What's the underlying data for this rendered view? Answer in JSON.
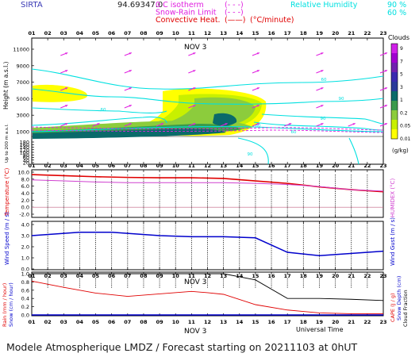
{
  "header": {
    "site": "SIRTA",
    "coords": "94.69347.0",
    "legend_left": [
      {
        "label": "0 C isotherm",
        "sym": "(- - -)",
        "color": "#e020e0"
      },
      {
        "label": "Snow-Rain Limit",
        "sym": "(- - -)",
        "color": "#e020e0"
      },
      {
        "label": "Convective Heat.",
        "sym": "(——)",
        "color": "#e00000",
        "unit": "(°C/minute)"
      }
    ],
    "legend_right": {
      "label": "Relative Humidity",
      "v1": "90 %",
      "v2": "60 %",
      "color": "#00e0e0"
    }
  },
  "hours": [
    "01",
    "02",
    "03",
    "04",
    "05",
    "06",
    "07",
    "08",
    "09",
    "10",
    "11",
    "12",
    "13",
    "14",
    "15",
    "16",
    "17",
    "18",
    "19",
    "20",
    "21",
    "22",
    "23"
  ],
  "date_label": "NOV  3",
  "x_axis_title": "Universal Time",
  "footer": "Modele Atmospherique LMDZ / Forecast starting on 20211103 at 0hUT",
  "colors": {
    "cloud_scale": [
      "#ffff00",
      "#c8f000",
      "#8ccc3c",
      "#3a9a4c",
      "#0a6a6a",
      "#2a3a9a",
      "#3a2ab0",
      "#7020b0",
      "#a000d0",
      "#d020e8"
    ],
    "rh_line": "#00e0e0",
    "wind_arrow": "#e020e0",
    "temperature": "#e00000",
    "humidex": "#d040d0",
    "wind_speed": "#0000cc",
    "precip_rain": "#e00000",
    "precip_snow": "#0000cc",
    "cloud_fraction": "#000000"
  },
  "chart_data": [
    {
      "type": "heatmap",
      "title": "Clouds",
      "ylabel": "Height (m a.s.l.)",
      "ylabel2": "Up to 200 m a.s.l.",
      "unit": "(g/kg)",
      "y_ticks": [
        11000,
        9000,
        7000,
        5000,
        3000,
        1000,
        180,
        160,
        140,
        120,
        100,
        80,
        60,
        40,
        20
      ],
      "colorbar_labels": [
        "9",
        "7",
        "5",
        "3",
        "1",
        "0.2",
        "0.05",
        "0.01"
      ],
      "rh_labels": [
        "60",
        "90",
        "60",
        "90",
        "60",
        "60",
        "90"
      ]
    },
    {
      "type": "line",
      "ylabel": "Temperature (°C)",
      "ylabel2": "HUMIDEX (°C)",
      "y_ticks": [
        "10.0",
        "8.0",
        "6.0",
        "4.0",
        "2.0",
        "0.0",
        "-2.0"
      ],
      "ylim": [
        -2,
        10
      ],
      "series": [
        {
          "name": "Temperature",
          "x": [
            1,
            3,
            5,
            7,
            9,
            11,
            13,
            15,
            17,
            19,
            21,
            23
          ],
          "values": [
            9.3,
            9.0,
            8.7,
            8.5,
            8.4,
            8.4,
            8.2,
            7.5,
            6.8,
            5.8,
            5.0,
            4.4
          ]
        },
        {
          "name": "HUMIDEX",
          "x": [
            1,
            3,
            5,
            7,
            9,
            11,
            13,
            15,
            17,
            19,
            21,
            23
          ],
          "values": [
            7.8,
            7.5,
            7.2,
            7.0,
            7.0,
            7.0,
            7.0,
            6.8,
            6.5,
            5.9,
            5.0,
            4.6
          ]
        }
      ]
    },
    {
      "type": "line",
      "ylabel": "Wind Speed (m / s)",
      "ylabel2": "Wind Gust (m / s)",
      "y_ticks": [
        "4.0",
        "3.0",
        "2.0",
        "1.0",
        "0.0"
      ],
      "ylim": [
        0,
        4
      ],
      "series": [
        {
          "name": "Wind Speed",
          "x": [
            1,
            4,
            6,
            9,
            11,
            13,
            15,
            17,
            19,
            23
          ],
          "values": [
            3.0,
            3.3,
            3.3,
            3.0,
            2.9,
            2.9,
            2.8,
            1.5,
            1.2,
            1.6
          ]
        }
      ]
    },
    {
      "type": "line",
      "ylabel": "Rain (mm / hour)",
      "ylabel_b": "Snow (cm / hour)",
      "ylabel2": "CAPE (J / g)",
      "ylabel2_b": "Snow Depth (cm)",
      "ylabel2_c": "Cloud Fraction",
      "y_ticks": [
        "1.0",
        "0.8",
        "0.6",
        "0.4",
        "0.2",
        "0.0"
      ],
      "ylim": [
        0,
        1
      ],
      "series": [
        {
          "name": "Cloud Fraction",
          "x": [
            1,
            12,
            13,
            15,
            17,
            19,
            21,
            23
          ],
          "values": [
            1.0,
            1.0,
            1.0,
            0.85,
            0.4,
            0.4,
            0.38,
            0.35
          ]
        },
        {
          "name": "CAPE",
          "x": [
            1,
            3,
            5,
            7,
            9,
            11,
            12,
            13,
            15,
            17,
            19,
            21,
            23
          ],
          "values": [
            0.82,
            0.67,
            0.53,
            0.45,
            0.51,
            0.57,
            0.54,
            0.5,
            0.25,
            0.12,
            0.05,
            0.03,
            0.03
          ]
        },
        {
          "name": "Rain",
          "x": [
            1,
            23
          ],
          "values": [
            0.0,
            0.0
          ]
        }
      ]
    }
  ]
}
